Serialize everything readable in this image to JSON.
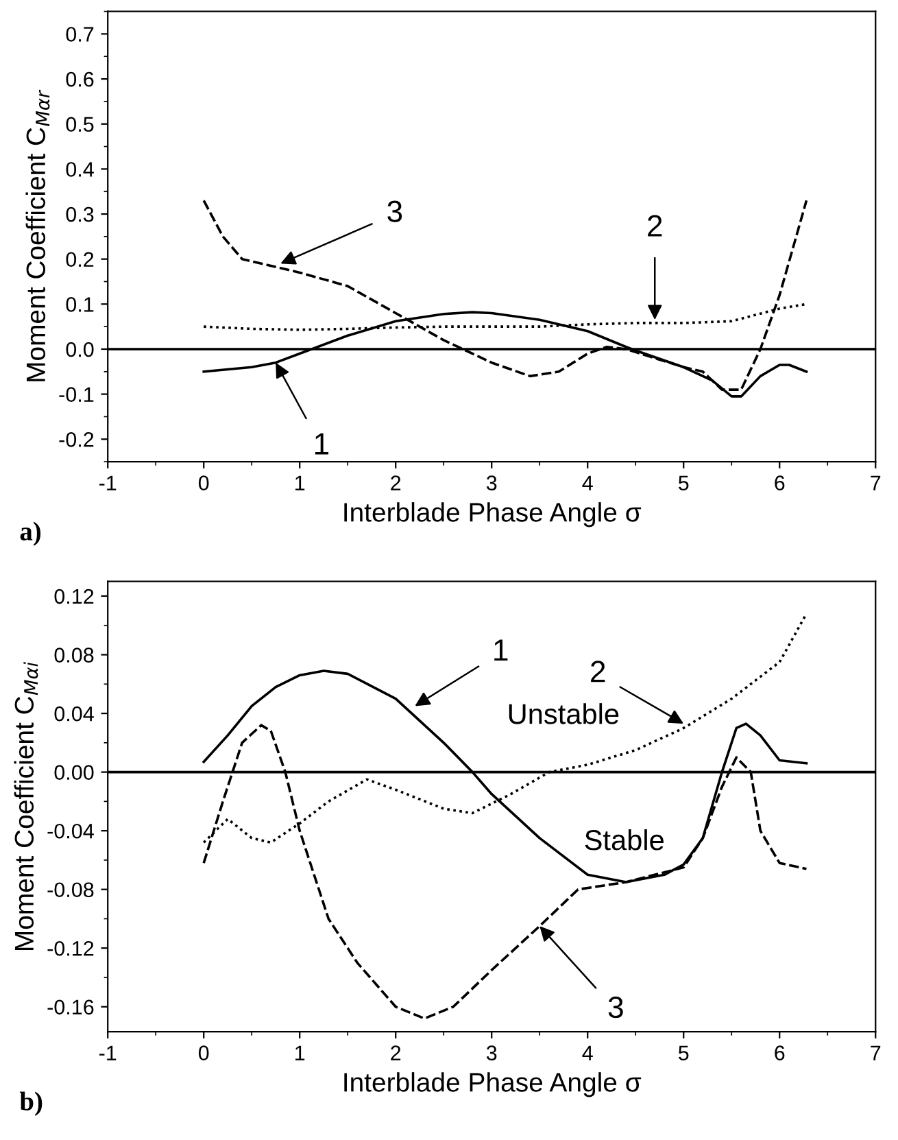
{
  "chart_data": [
    {
      "type": "line",
      "xlabel": "Interblade Phase Angle σ",
      "ylabel": "Moment Coefficient C$_{Mαr}$",
      "xlim": [
        -1,
        7
      ],
      "xticks": [
        -1,
        0,
        1,
        2,
        3,
        4,
        5,
        6,
        7
      ],
      "ylim": [
        -0.25,
        0.75
      ],
      "yticks": [
        {
          "value": -0.2,
          "label": "-0.2"
        },
        {
          "value": -0.1,
          "label": "-0.1"
        },
        {
          "value": 0,
          "label": "0.0"
        },
        0.1,
        0.2,
        0.3,
        0.4,
        0.5,
        0.6,
        0.7
      ],
      "grid": false,
      "legend": false,
      "ref_lines": [
        {
          "axis": "y",
          "value": 0,
          "color": "#000000",
          "line_style": "solid"
        }
      ],
      "series": [
        {
          "color": "#000000",
          "line_style": "solid",
          "x": [
            0,
            0.5,
            0.75,
            1,
            1.5,
            2,
            2.5,
            2.8,
            3,
            3.5,
            4,
            4.4,
            4.5,
            5,
            5.3,
            5.5,
            5.6,
            5.8,
            6,
            6.1,
            6.28
          ],
          "values": [
            -0.05,
            -0.04,
            -0.03,
            -0.01,
            0.03,
            0.062,
            0.078,
            0.082,
            0.08,
            0.065,
            0.04,
            0.005,
            -0.003,
            -0.04,
            -0.07,
            -0.105,
            -0.105,
            -0.06,
            -0.035,
            -0.035,
            -0.05
          ]
        },
        {
          "color": "#000000",
          "line_style": "dotted",
          "x": [
            0,
            0.5,
            1,
            1.5,
            2,
            2.5,
            3,
            3.5,
            4,
            4.5,
            5,
            5.5,
            6,
            6.28
          ],
          "values": [
            0.05,
            0.045,
            0.043,
            0.045,
            0.048,
            0.05,
            0.05,
            0.05,
            0.055,
            0.058,
            0.058,
            0.062,
            0.09,
            0.1
          ]
        },
        {
          "color": "#000000",
          "line_style": "dashed",
          "x": [
            0,
            0.2,
            0.4,
            0.6,
            1,
            1.5,
            2,
            2.5,
            3,
            3.4,
            3.7,
            4,
            4.2,
            4.4,
            4.7,
            5,
            5.2,
            5.4,
            5.6,
            5.8,
            6,
            6.28
          ],
          "values": [
            0.33,
            0.25,
            0.2,
            0.19,
            0.17,
            0.14,
            0.08,
            0.02,
            -0.03,
            -0.06,
            -0.05,
            -0.01,
            0.005,
            0.0,
            -0.02,
            -0.04,
            -0.05,
            -0.09,
            -0.09,
            0.0,
            0.12,
            0.33
          ]
        }
      ],
      "annotations": [
        {
          "text": "3",
          "x": 0.8,
          "y": 0.19
        },
        {
          "text": "2",
          "x": 4.7,
          "y": 0.065
        },
        {
          "text": "1",
          "x": 0.75,
          "y": -0.03
        },
        "a)"
      ]
    },
    {
      "type": "line",
      "xlabel": "Interblade Phase Angle σ",
      "ylabel": "Moment Coefficient C$_{Mαi}$",
      "xlim": [
        -1,
        7
      ],
      "xticks": [
        -1,
        0,
        1,
        2,
        3,
        4,
        5,
        6,
        7
      ],
      "ylim": [
        -0.177,
        0.13
      ],
      "yticks": [
        {
          "value": -0.16,
          "label": "-0.16"
        },
        {
          "value": -0.12,
          "label": "-0.12"
        },
        {
          "value": -0.08,
          "label": "-0.08"
        },
        {
          "value": -0.04,
          "label": "-0.04"
        },
        {
          "value": 0,
          "label": "0.00"
        },
        0.04,
        0.08,
        0.12
      ],
      "grid": false,
      "legend": false,
      "ref_lines": [
        {
          "axis": "y",
          "value": 0,
          "color": "#000000",
          "line_style": "solid"
        }
      ],
      "series": [
        {
          "color": "#000000",
          "line_style": "solid",
          "x": [
            0,
            0.25,
            0.5,
            0.75,
            1,
            1.25,
            1.5,
            2,
            2.5,
            2.8,
            3,
            3.5,
            4,
            4.4,
            4.8,
            5,
            5.2,
            5.4,
            5.55,
            5.65,
            5.8,
            6,
            6.28
          ],
          "values": [
            0.007,
            0.025,
            0.045,
            0.058,
            0.066,
            0.069,
            0.067,
            0.05,
            0.02,
            0.0,
            -0.015,
            -0.045,
            -0.07,
            -0.075,
            -0.07,
            -0.063,
            -0.045,
            0.0,
            0.03,
            0.033,
            0.025,
            0.008,
            0.006
          ]
        },
        {
          "color": "#000000",
          "line_style": "dotted",
          "x": [
            0,
            0.25,
            0.5,
            0.7,
            1,
            1.3,
            1.7,
            2,
            2.5,
            2.8,
            3.2,
            3.6,
            4,
            4.5,
            5,
            5.5,
            6,
            6.28
          ],
          "values": [
            -0.048,
            -0.032,
            -0.045,
            -0.048,
            -0.035,
            -0.02,
            -0.005,
            -0.012,
            -0.025,
            -0.028,
            -0.015,
            0.0,
            0.005,
            0.015,
            0.03,
            0.05,
            0.075,
            0.108
          ]
        },
        {
          "color": "#000000",
          "line_style": "dashed",
          "x": [
            0,
            0.2,
            0.4,
            0.6,
            0.7,
            0.85,
            1,
            1.3,
            1.6,
            2,
            2.3,
            2.6,
            3,
            3.5,
            3.9,
            4.4,
            5,
            5.2,
            5.4,
            5.55,
            5.7,
            5.8,
            6,
            6.28
          ],
          "values": [
            -0.062,
            -0.02,
            0.02,
            0.032,
            0.028,
            0.0,
            -0.04,
            -0.1,
            -0.13,
            -0.16,
            -0.168,
            -0.16,
            -0.135,
            -0.105,
            -0.08,
            -0.075,
            -0.065,
            -0.045,
            -0.01,
            0.01,
            0.0,
            -0.04,
            -0.062,
            -0.066
          ]
        }
      ],
      "annotations": [
        {
          "text": "1",
          "x": 2.2,
          "y": 0.045
        },
        {
          "text": "2",
          "x": 5.0,
          "y": 0.033
        },
        {
          "text": "3",
          "x": 3.5,
          "y": -0.105
        },
        "Unstable",
        "Stable",
        "b)"
      ]
    }
  ]
}
